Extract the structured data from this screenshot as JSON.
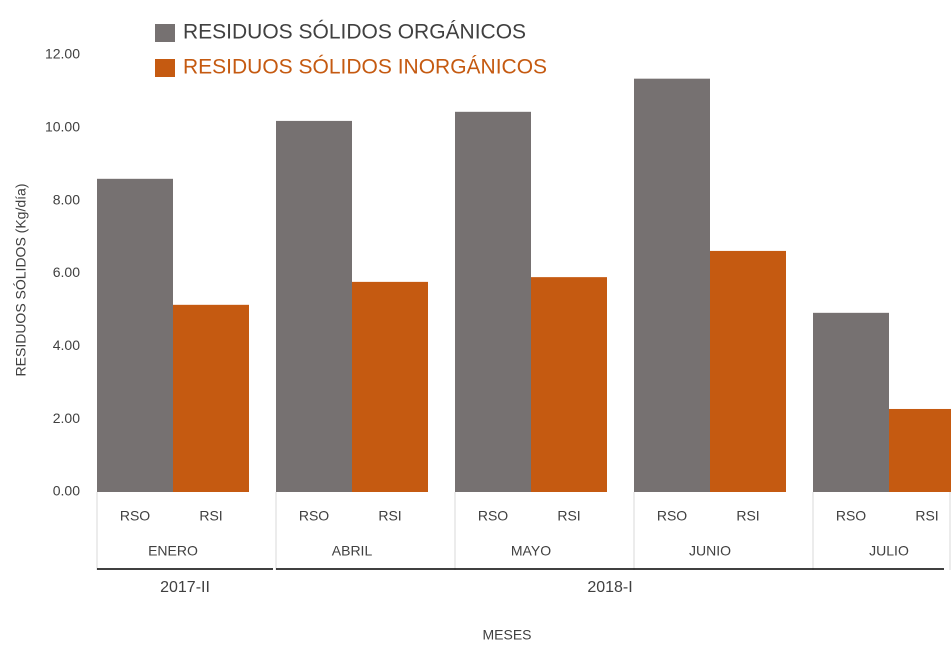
{
  "chart_data": {
    "type": "bar",
    "y_label": "RESIDUOS SÓLIDOS (Kg/día)",
    "x_label": "MESES",
    "categories": [
      "ENERO",
      "ABRIL",
      "MAYO",
      "JUNIO",
      "JULIO"
    ],
    "bar_labels": [
      "RSO",
      "RSI"
    ],
    "category_period": [
      "2017-II",
      "2018-I",
      "2018-I",
      "2018-I",
      "2018-I"
    ],
    "series": [
      {
        "name": "RESIDUOS SÓLIDOS ORGÁNICOS",
        "color": "#767171",
        "values": [
          8.6,
          10.19,
          10.44,
          11.35,
          4.92
        ]
      },
      {
        "name": "RESIDUOS SÓLIDOS INORGÁNICOS",
        "color": "#c55a11",
        "values": [
          5.14,
          5.77,
          5.9,
          6.62,
          2.28
        ]
      }
    ],
    "ylim": [
      0,
      12
    ],
    "yticks": [
      {
        "value": 0,
        "label": "0.00"
      },
      {
        "value": 2,
        "label": "2.00"
      },
      {
        "value": 4,
        "label": "4.00"
      },
      {
        "value": 6,
        "label": "6.00"
      },
      {
        "value": 8,
        "label": "8.00"
      },
      {
        "value": 10,
        "label": "10.00"
      },
      {
        "value": 12,
        "label": "12.00"
      }
    ],
    "grid": false
  }
}
